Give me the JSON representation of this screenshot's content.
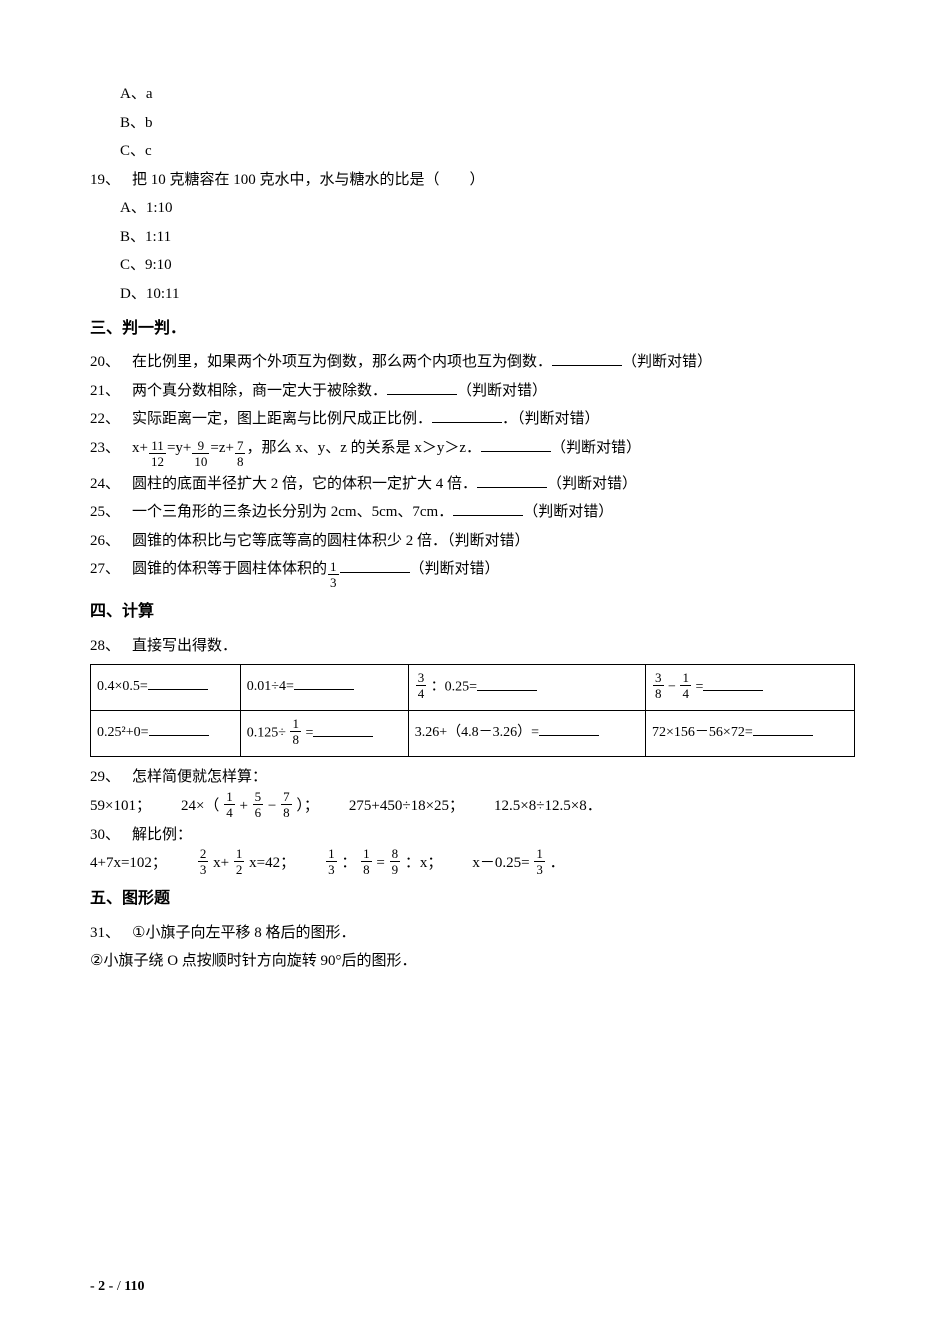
{
  "opts18": {
    "a": "A、a",
    "b": "B、b",
    "c": "C、c"
  },
  "q19": {
    "num": "19、",
    "text": "把 10 克糖容在 100 克水中，水与糖水的比是（　　）",
    "a": "A、1:10",
    "b": "B、1:11",
    "c": "C、9:10",
    "d": "D、10:11"
  },
  "sec3": "三、判一判．",
  "judge_suffix": "（判断对错）",
  "judge_suffix_dot": "．（判断对错）",
  "q20": {
    "num": "20、",
    "text": "在比例里，如果两个外项互为倒数，那么两个内项也互为倒数．"
  },
  "q21": {
    "num": "21、",
    "text": "两个真分数相除，商一定大于被除数．"
  },
  "q22": {
    "num": "22、",
    "text": "实际距离一定，图上距离与比例尺成正比例．"
  },
  "q23": {
    "num": "23、",
    "pre": "x+",
    "f1n": "11",
    "f1d": "12",
    "mid1": "=y+",
    "f2n": "9",
    "f2d": "10",
    "mid2": "=z+",
    "f3n": "7",
    "f3d": "8",
    "post": "，那么 x、y、z 的关系是 x＞y＞z．"
  },
  "q24": {
    "num": "24、",
    "text": "圆柱的底面半径扩大 2 倍，它的体积一定扩大 4 倍．"
  },
  "q25": {
    "num": "25、",
    "text": "一个三角形的三条边长分别为 2cm、5cm、7cm．"
  },
  "q26": {
    "num": "26、",
    "text": "圆锥的体积比与它等底等高的圆柱体积少 2 倍．（判断对错）"
  },
  "q27": {
    "num": "27、",
    "pre": "圆锥的体积等于圆柱体体积的 ",
    "fn": "1",
    "fd": "3"
  },
  "sec4": "四、计算",
  "q28": {
    "num": "28、",
    "text": "直接写出得数．"
  },
  "table": {
    "r1c1": "0.4×0.5=",
    "r1c2": "0.01÷4=",
    "r1c3_pre": "",
    "r1c3_fn": "3",
    "r1c3_fd": "4",
    "r1c3_post": "：0.25=",
    "r1c4_f1n": "3",
    "r1c4_f1d": "8",
    "r1c4_mid": " − ",
    "r1c4_f2n": "1",
    "r1c4_f2d": "4",
    "r1c4_post": "=",
    "r2c1": "0.25²+0=",
    "r2c2_pre": "0.125÷ ",
    "r2c2_fn": "1",
    "r2c2_fd": "8",
    "r2c2_post": " =",
    "r2c3": "3.26+（4.8－3.26）=",
    "r2c4": "72×156－56×72="
  },
  "q29": {
    "num": "29、",
    "text": "怎样简便就怎样算："
  },
  "row29": {
    "a": "59×101；",
    "b_pre": "24×（ ",
    "b_f1n": "1",
    "b_f1d": "4",
    "b_mid1": "+ ",
    "b_f2n": "5",
    "b_f2d": "6",
    "b_mid2": " − ",
    "b_f3n": "7",
    "b_f3d": "8",
    "b_post": " ）；",
    "c": "275+450÷18×25；",
    "d": "12.5×8÷12.5×8．"
  },
  "q30": {
    "num": "30、",
    "text": "解比例："
  },
  "row30": {
    "a": "4+7x=102；",
    "b_f1n": "2",
    "b_f1d": "3",
    "b_mid": "x+ ",
    "b_f2n": "1",
    "b_f2d": "2",
    "b_post": "x=42；",
    "c_f1n": "1",
    "c_f1d": "3",
    "c_mid1": "：",
    "c_f2n": "1",
    "c_f2d": "8",
    "c_mid2": "= ",
    "c_f3n": "8",
    "c_f3d": "9",
    "c_post": "：x；",
    "d_pre": "x－0.25= ",
    "d_fn": "1",
    "d_fd": "3",
    "d_post": "．"
  },
  "sec5": "五、图形题",
  "q31": {
    "num": "31、",
    "line1_icon": "①",
    "line1": "小旗子向左平移 8 格后的图形．",
    "line2_icon": "②",
    "line2": "小旗子绕 O 点按顺时针方向旋转 90°后的图形．"
  },
  "footer": {
    "a": "- 2 -",
    "b": " / ",
    "c": "110"
  }
}
